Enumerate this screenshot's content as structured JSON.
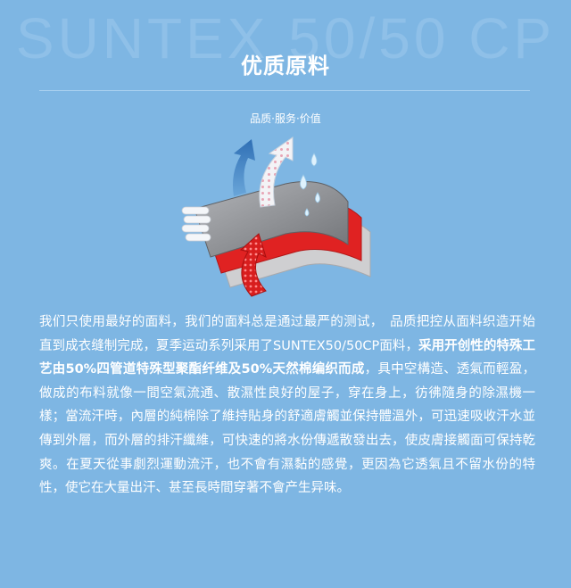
{
  "watermark": "SUNTEX 50/50 CP",
  "title": "优质原料",
  "subtitle": "品质·服务·价值",
  "paragraph": {
    "part1": "我们只使用最好的面料，我们的面料总是通过最严的测试，　品质把控从面料织造开始直到成衣缝制完成，夏季运动系列采用了SUNTEX50/50CP面料，",
    "bold": "采用开创性的特殊工艺由50%四管道特殊型聚酯纤维及50%天然棉编织而成",
    "part2": "，具中空構造、透氣而輕盈，做成的布料就像一間空氣流通、散濕性良好的屋子，穿在身上，彷彿隨身的除濕機一樣；當流汗時，內層的純棉除了維持貼身的舒適膚觸並保持體溫外，可迅速吸收汗水並傳到外層，而外層的排汗纖維，可快速的將水份傳遞散發出去，使皮膚接觸面可保持乾爽。在夏天從事劇烈運動流汗，也不會有濕黏的感覺，更因為它透氣且不留水份的特性，使它在大量出汗、甚至長時間穿著不會产生异味。"
  },
  "colors": {
    "background": "#7eb6e3",
    "fabric_top": "#8a8c90",
    "fabric_middle": "#e02020",
    "fabric_bottom": "#c9c9c9",
    "arrow_blue": "#3d86c8",
    "arrow_white": "#ffffff",
    "water_drop": "#d8eefb"
  },
  "icons": [
    "fabric-layers-illustration",
    "moisture-arrow-icon",
    "water-drop-icon"
  ]
}
